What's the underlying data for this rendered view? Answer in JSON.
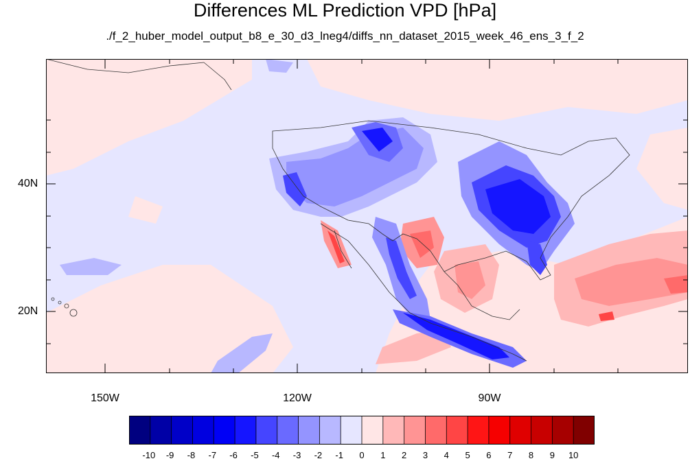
{
  "title": "Differences ML Prediction VPD [hPa]",
  "subtitle": "./f_2_huber_model_output_b8_e_30_d3_lneg4/diffs_nn_dataset_2015_week_46_ens_3_f_2",
  "lat_labels": [
    "40N",
    "20N"
  ],
  "lon_labels": [
    "150W",
    "120W",
    "90W"
  ],
  "colorbar": {
    "labels": [
      "-10",
      "-9",
      "-8",
      "-7",
      "-6",
      "-5",
      "-4",
      "-3",
      "-2",
      "-1",
      "0",
      "1",
      "2",
      "3",
      "4",
      "5",
      "6",
      "7",
      "8",
      "9",
      "10"
    ],
    "colors": [
      "#000080",
      "#0000a6",
      "#0000c8",
      "#0000e0",
      "#0000f6",
      "#1515ff",
      "#4545ff",
      "#6a6aff",
      "#9494ff",
      "#b8b8ff",
      "#e6e6ff",
      "#ffe6e6",
      "#ffb8b8",
      "#ff9494",
      "#ff6a6a",
      "#ff4545",
      "#ff1515",
      "#f60000",
      "#e00000",
      "#c80000",
      "#a60000",
      "#800000"
    ]
  }
}
